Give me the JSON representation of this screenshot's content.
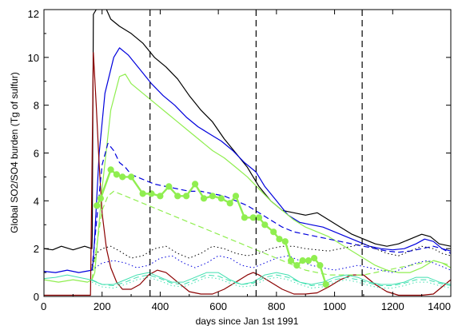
{
  "chart_data": {
    "type": "line",
    "title": "",
    "xlabel": "days since Jan 1st 1991",
    "ylabel": "Global SO2/SO4 burden (Tg of sulfur)",
    "xlim": [
      0,
      1400
    ],
    "ylim": [
      0,
      12
    ],
    "xticks": [
      0,
      200,
      400,
      600,
      800,
      1000,
      1200,
      1400
    ],
    "yticks": [
      0,
      2,
      4,
      6,
      8,
      10,
      12
    ],
    "grid": false,
    "legend": "none",
    "vlines": [
      365,
      730,
      1095
    ],
    "series": [
      {
        "color": "#000000",
        "dash": "solid",
        "width": 1.2,
        "x": [
          0,
          30,
          60,
          100,
          140,
          165,
          166,
          170,
          180,
          200,
          215,
          230,
          260,
          300,
          340,
          380,
          420,
          460,
          500,
          540,
          580,
          620,
          660,
          700,
          740,
          780,
          820,
          860,
          900,
          940,
          980,
          1020,
          1060,
          1100,
          1140,
          1180,
          1220,
          1260,
          1300,
          1330,
          1360,
          1400
        ],
        "y": [
          2.0,
          1.95,
          2.1,
          1.95,
          2.1,
          2.0,
          2.6,
          11.8,
          12.0,
          12.1,
          12.0,
          11.6,
          11.3,
          11.0,
          10.6,
          10.0,
          9.6,
          9.1,
          8.4,
          7.8,
          7.3,
          6.6,
          6.0,
          5.4,
          4.6,
          4.0,
          3.6,
          3.5,
          3.4,
          3.5,
          3.2,
          2.9,
          2.6,
          2.4,
          2.2,
          2.1,
          2.2,
          2.4,
          2.6,
          2.5,
          2.2,
          2.1
        ]
      },
      {
        "color": "#0000dd",
        "dash": "solid",
        "width": 1.2,
        "x": [
          0,
          40,
          80,
          120,
          165,
          170,
          190,
          210,
          240,
          260,
          290,
          330,
          370,
          410,
          450,
          490,
          530,
          570,
          610,
          650,
          690,
          730,
          760,
          800,
          840,
          880,
          920,
          960,
          1000,
          1040,
          1080,
          1120,
          1160,
          1200,
          1240,
          1280,
          1310,
          1340,
          1370,
          1400
        ],
        "y": [
          1.05,
          1.0,
          1.1,
          1.0,
          1.1,
          1.5,
          6.0,
          8.5,
          10.0,
          10.4,
          10.1,
          9.5,
          8.9,
          8.4,
          8.0,
          7.5,
          7.1,
          6.8,
          6.5,
          6.1,
          5.6,
          5.2,
          4.6,
          4.0,
          3.4,
          3.1,
          3.0,
          2.9,
          2.7,
          2.5,
          2.3,
          2.1,
          2.0,
          1.95,
          2.0,
          2.2,
          2.4,
          2.3,
          2.0,
          1.9
        ]
      },
      {
        "color": "#90ee50",
        "dash": "solid",
        "width": 1.2,
        "x": [
          0,
          50,
          100,
          150,
          165,
          175,
          200,
          230,
          260,
          280,
          300,
          340,
          380,
          420,
          460,
          500,
          540,
          580,
          620,
          660,
          700,
          740,
          780,
          820,
          860,
          900,
          940,
          980,
          1020,
          1060,
          1100,
          1140,
          1180,
          1220,
          1260,
          1300,
          1340,
          1370,
          1400
        ],
        "y": [
          0.7,
          0.6,
          0.7,
          0.6,
          0.7,
          1.0,
          4.5,
          7.8,
          9.2,
          9.3,
          8.9,
          8.5,
          8.1,
          7.7,
          7.3,
          6.9,
          6.5,
          6.1,
          5.8,
          5.4,
          5.0,
          4.5,
          4.0,
          3.6,
          3.2,
          2.9,
          2.7,
          2.5,
          2.2,
          1.9,
          1.6,
          1.3,
          1.1,
          1.0,
          1.0,
          1.2,
          1.5,
          1.4,
          1.2
        ]
      },
      {
        "color": "#8b0000",
        "dash": "solid",
        "width": 1.2,
        "x": [
          0,
          60,
          120,
          160,
          165,
          170,
          180,
          190,
          200,
          215,
          230,
          250,
          270,
          300,
          330,
          360,
          390,
          420,
          460,
          500,
          540,
          580,
          620,
          660,
          700,
          720,
          740,
          780,
          820,
          860,
          900,
          940,
          980,
          1020,
          1060,
          1100,
          1140,
          1180,
          1220,
          1260,
          1300,
          1340,
          1370,
          1400
        ],
        "y": [
          0.05,
          0.05,
          0.05,
          0.05,
          5.0,
          10.2,
          8.0,
          5.5,
          3.5,
          2.0,
          1.2,
          0.6,
          0.3,
          0.3,
          0.5,
          0.9,
          1.1,
          1.0,
          0.6,
          0.2,
          0.1,
          0.1,
          0.3,
          0.6,
          0.9,
          1.0,
          0.9,
          0.6,
          0.3,
          0.1,
          0.1,
          0.15,
          0.4,
          0.7,
          0.9,
          0.9,
          0.5,
          0.2,
          0.05,
          0.05,
          0.05,
          0.1,
          0.4,
          0.7
        ]
      },
      {
        "color": "#0000dd",
        "dash": "dashed",
        "width": 1.2,
        "x": [
          165,
          180,
          200,
          220,
          240,
          260,
          280,
          300,
          340,
          380,
          420,
          460,
          500,
          540,
          580,
          620,
          660,
          700,
          740,
          780,
          820,
          860,
          900,
          940,
          980,
          1020,
          1060,
          1100,
          1140,
          1180,
          1220,
          1260,
          1300,
          1340,
          1370,
          1400
        ],
        "y": [
          1.1,
          3.0,
          5.5,
          6.4,
          6.1,
          5.6,
          5.4,
          5.1,
          4.9,
          4.7,
          4.6,
          4.5,
          4.4,
          4.4,
          4.3,
          4.2,
          4.0,
          3.8,
          3.5,
          3.2,
          2.9,
          2.7,
          2.6,
          2.5,
          2.4,
          2.3,
          2.2,
          2.1,
          2.0,
          1.9,
          1.85,
          1.9,
          2.0,
          2.1,
          2.0,
          1.8
        ]
      },
      {
        "color": "#90ee50",
        "dash": "dashed",
        "width": 1.2,
        "x": [
          165,
          180,
          200,
          220,
          240,
          260,
          280,
          300,
          340,
          380,
          420,
          460,
          500,
          540,
          580,
          620,
          660,
          700,
          740,
          780,
          820,
          860,
          900,
          940,
          980,
          1020,
          1060,
          1100,
          1140,
          1180,
          1220,
          1260,
          1300,
          1340,
          1370,
          1400
        ],
        "y": [
          0.7,
          2.0,
          3.6,
          4.2,
          4.4,
          4.3,
          4.2,
          4.1,
          3.9,
          3.7,
          3.5,
          3.3,
          3.1,
          2.9,
          2.7,
          2.5,
          2.3,
          2.1,
          1.9,
          1.7,
          1.5,
          1.3,
          1.1,
          1.0,
          0.9,
          0.9,
          0.9,
          0.9,
          1.0,
          1.1,
          1.2,
          1.3,
          1.4,
          1.5,
          1.4,
          1.3
        ]
      },
      {
        "color": "#000000",
        "dash": "dotted",
        "width": 1.0,
        "x": [
          165,
          180,
          200,
          230,
          260,
          300,
          340,
          380,
          420,
          460,
          500,
          540,
          580,
          620,
          660,
          700,
          740,
          780,
          820,
          860,
          900,
          940,
          980,
          1020,
          1060,
          1100,
          1140,
          1180,
          1220,
          1260,
          1300,
          1340,
          1370,
          1400
        ],
        "y": [
          1.3,
          1.8,
          2.0,
          2.1,
          1.9,
          1.6,
          1.7,
          2.0,
          2.1,
          1.8,
          1.6,
          1.8,
          2.1,
          2.0,
          1.8,
          1.7,
          1.8,
          2.0,
          2.1,
          2.1,
          2.0,
          1.95,
          1.9,
          2.0,
          2.1,
          2.2,
          2.0,
          1.8,
          1.7,
          1.9,
          2.1,
          2.0,
          1.8,
          1.7
        ]
      },
      {
        "color": "#0000dd",
        "dash": "dotted",
        "width": 1.0,
        "x": [
          165,
          200,
          240,
          280,
          320,
          360,
          400,
          440,
          480,
          520,
          560,
          600,
          640,
          680,
          720,
          760,
          800,
          840,
          880,
          920,
          960,
          1000,
          1040,
          1080,
          1120,
          1160,
          1200,
          1240,
          1280,
          1320,
          1360,
          1400
        ],
        "y": [
          1.1,
          1.4,
          1.5,
          1.4,
          1.2,
          1.3,
          1.6,
          1.7,
          1.4,
          1.2,
          1.4,
          1.7,
          1.6,
          1.3,
          1.2,
          1.4,
          1.6,
          1.7,
          1.5,
          1.3,
          1.2,
          1.1,
          1.2,
          1.3,
          1.2,
          1.1,
          1.0,
          1.2,
          1.4,
          1.5,
          1.3,
          1.1
        ]
      },
      {
        "color": "#40e0b0",
        "dash": "solid",
        "width": 1.0,
        "x": [
          0,
          40,
          80,
          120,
          160,
          200,
          240,
          280,
          320,
          360,
          400,
          440,
          480,
          520,
          560,
          600,
          640,
          680,
          720,
          760,
          800,
          840,
          880,
          920,
          960,
          1000,
          1040,
          1080,
          1120,
          1160,
          1200,
          1240,
          1280,
          1320,
          1360,
          1400
        ],
        "y": [
          0.75,
          0.8,
          0.9,
          0.8,
          0.7,
          0.5,
          0.5,
          0.7,
          0.9,
          1.0,
          0.8,
          0.6,
          0.6,
          0.8,
          1.0,
          1.0,
          0.7,
          0.5,
          0.6,
          0.9,
          1.0,
          0.9,
          0.6,
          0.5,
          0.6,
          0.8,
          0.9,
          0.8,
          0.6,
          0.5,
          0.5,
          0.6,
          0.8,
          0.8,
          0.6,
          0.5
        ]
      },
      {
        "color": "#40e0b0",
        "dash": "dashed",
        "width": 1.0,
        "x": [
          165,
          200,
          240,
          280,
          320,
          360,
          400,
          440,
          480,
          520,
          560,
          600,
          640,
          680,
          720,
          760,
          800,
          840,
          880,
          920,
          960,
          1000,
          1040,
          1080,
          1120,
          1160,
          1200,
          1240,
          1280,
          1320,
          1360,
          1400
        ],
        "y": [
          0.7,
          0.5,
          0.45,
          0.6,
          0.8,
          0.9,
          0.75,
          0.55,
          0.5,
          0.7,
          0.9,
          0.85,
          0.65,
          0.5,
          0.55,
          0.8,
          0.9,
          0.8,
          0.6,
          0.45,
          0.5,
          0.7,
          0.8,
          0.7,
          0.55,
          0.45,
          0.45,
          0.55,
          0.7,
          0.7,
          0.55,
          0.45
        ]
      },
      {
        "color": "#40e0b0",
        "dash": "dotted",
        "width": 1.0,
        "x": [
          165,
          200,
          240,
          280,
          320,
          360,
          400,
          440,
          480,
          520,
          560,
          600,
          640,
          680,
          720,
          760,
          800,
          840,
          880,
          920,
          960,
          1000,
          1040,
          1080,
          1120,
          1160,
          1200,
          1240,
          1280,
          1320,
          1360,
          1400
        ],
        "y": [
          0.6,
          0.4,
          0.35,
          0.5,
          0.7,
          0.8,
          0.65,
          0.45,
          0.4,
          0.6,
          0.8,
          0.75,
          0.55,
          0.4,
          0.45,
          0.7,
          0.8,
          0.7,
          0.5,
          0.35,
          0.4,
          0.6,
          0.7,
          0.6,
          0.45,
          0.35,
          0.35,
          0.45,
          0.6,
          0.6,
          0.45,
          0.35
        ]
      },
      {
        "color": "#90ee50",
        "dash": "solid",
        "width": 2.4,
        "markers": true,
        "x": [
          182,
          195,
          230,
          250,
          270,
          300,
          340,
          370,
          400,
          430,
          460,
          490,
          520,
          550,
          580,
          610,
          640,
          660,
          690,
          720,
          740,
          760,
          790,
          810,
          830,
          850,
          870,
          890,
          910,
          930,
          950,
          970
        ],
        "y": [
          3.8,
          4.1,
          5.3,
          5.1,
          5.0,
          5.0,
          4.3,
          4.3,
          4.2,
          4.6,
          4.2,
          4.2,
          4.7,
          4.1,
          4.2,
          4.1,
          3.9,
          4.2,
          3.3,
          3.3,
          3.3,
          3.0,
          2.7,
          2.4,
          2.3,
          1.5,
          1.3,
          1.5,
          1.5,
          1.6,
          1.3,
          0.5
        ]
      }
    ]
  }
}
